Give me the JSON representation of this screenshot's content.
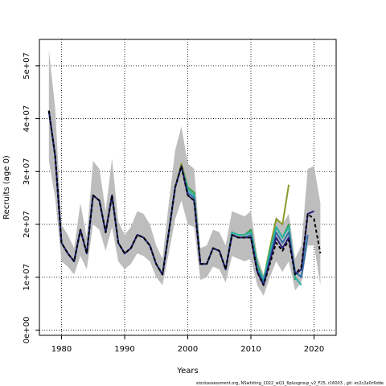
{
  "chart_data": {
    "type": "line",
    "xlabel": "Years",
    "ylabel": "Recruits (age 0)",
    "xlim": [
      1976.5,
      2023.5
    ],
    "ylim": [
      -1000000,
      55000000
    ],
    "x_ticks": [
      1980,
      1990,
      2000,
      2010,
      2020
    ],
    "x_tick_labels": [
      "1980",
      "1990",
      "2000",
      "2010",
      "2020"
    ],
    "y_ticks": [
      0,
      10000000,
      20000000,
      30000000,
      40000000,
      50000000
    ],
    "y_tick_labels": [
      "0e+00",
      "1e+07",
      "2e+07",
      "3e+07",
      "4e+07",
      "5e+07"
    ],
    "grid": true,
    "grid_style": "dotted",
    "confidence_band": {
      "color": "#bdbdbd",
      "x": [
        1978,
        1979,
        1980,
        1981,
        1982,
        1983,
        1984,
        1985,
        1986,
        1987,
        1988,
        1989,
        1990,
        1991,
        1992,
        1993,
        1994,
        1995,
        1996,
        1997,
        1998,
        1999,
        2000,
        2001,
        2002,
        2003,
        2004,
        2005,
        2006,
        2007,
        2008,
        2009,
        2010,
        2011,
        2012,
        2013,
        2014,
        2015,
        2016,
        2017,
        2018,
        2019,
        2020,
        2021
      ],
      "upper": [
        53000000,
        42000000,
        20000000,
        18000000,
        15500000,
        24000000,
        17500000,
        32000000,
        30500000,
        22500000,
        32500000,
        20500000,
        18000000,
        19500000,
        22500000,
        22000000,
        20000000,
        16000000,
        13500000,
        24000000,
        34000000,
        38500000,
        31500000,
        30500000,
        15500000,
        16000000,
        19000000,
        18500000,
        16000000,
        22500000,
        22000000,
        21500000,
        22500000,
        14000000,
        10500000,
        15000000,
        21500000,
        20000000,
        22000000,
        13500000,
        16000000,
        30500000,
        31000000,
        24000000
      ],
      "lower": [
        32000000,
        25000000,
        13000000,
        12000000,
        10500000,
        14000000,
        11500000,
        20000000,
        19000000,
        15000000,
        19500000,
        13000000,
        11500000,
        12500000,
        14500000,
        14000000,
        13000000,
        10000000,
        8500000,
        14500000,
        21000000,
        24500000,
        20000000,
        19500000,
        9500000,
        10000000,
        12000000,
        11500000,
        9000000,
        14000000,
        13500000,
        13000000,
        13500000,
        8500000,
        6500000,
        10000000,
        13000000,
        11000000,
        13000000,
        7500000,
        9000000,
        16000000,
        16000000,
        8500000
      ]
    },
    "series": [
      {
        "color": "#000000",
        "dashed": true,
        "x": [
          1978,
          1979,
          1980,
          1981,
          1982,
          1983,
          1984,
          1985,
          1986,
          1987,
          1988,
          1989,
          1990,
          1991,
          1992,
          1993,
          1994,
          1995,
          1996,
          1997,
          1998,
          1999,
          2000,
          2001,
          2002,
          2003,
          2004,
          2005,
          2006,
          2007,
          2008,
          2009,
          2010,
          2011,
          2012,
          2013,
          2014,
          2015,
          2016,
          2017,
          2018,
          2019,
          2020,
          2021
        ],
        "values": [
          41500000,
          33000000,
          16500000,
          14500000,
          13000000,
          19000000,
          14500000,
          25500000,
          24500000,
          18500000,
          25500000,
          16500000,
          14500000,
          15500000,
          18000000,
          17500000,
          16000000,
          12500000,
          10500000,
          18500000,
          27000000,
          31000000,
          25500000,
          24500000,
          12500000,
          12500000,
          15500000,
          15000000,
          11500000,
          18000000,
          17500000,
          17500000,
          17500000,
          11000000,
          8500000,
          12500000,
          16500000,
          15000000,
          17000000,
          10500000,
          12000000,
          22000000,
          21000000,
          14500000
        ]
      },
      {
        "color": "#2a1f7a",
        "x": [
          1978,
          1979,
          1980,
          1981,
          1982,
          1983,
          1984,
          1985,
          1986,
          1987,
          1988,
          1989,
          1990,
          1991,
          1992,
          1993,
          1994,
          1995,
          1996,
          1997,
          1998,
          1999,
          2000,
          2001,
          2002,
          2003,
          2004,
          2005,
          2006,
          2007,
          2008,
          2009,
          2010,
          2011,
          2012,
          2013,
          2014,
          2015,
          2016,
          2017,
          2018,
          2019,
          2020
        ],
        "values": [
          41500000,
          33000000,
          16500000,
          14500000,
          13000000,
          19000000,
          14500000,
          25500000,
          24500000,
          18500000,
          25500000,
          16500000,
          14500000,
          15500000,
          18000000,
          17500000,
          16000000,
          12500000,
          10500000,
          18500000,
          27000000,
          31000000,
          25500000,
          24500000,
          12500000,
          12500000,
          15500000,
          15000000,
          11500000,
          18000000,
          17500000,
          17500000,
          17500000,
          11000000,
          8500000,
          13000000,
          17500000,
          15500000,
          17500000,
          10500000,
          11500000,
          22000000,
          22500000
        ]
      },
      {
        "color": "#2e6fa7",
        "x": [
          1978,
          1979,
          1980,
          1981,
          1982,
          1983,
          1984,
          1985,
          1986,
          1987,
          1988,
          1989,
          1990,
          1991,
          1992,
          1993,
          1994,
          1995,
          1996,
          1997,
          1998,
          1999,
          2000,
          2001,
          2002,
          2003,
          2004,
          2005,
          2006,
          2007,
          2008,
          2009,
          2010,
          2011,
          2012,
          2013,
          2014,
          2015,
          2016,
          2017,
          2018,
          2019
        ],
        "values": [
          41500000,
          33000000,
          16500000,
          14500000,
          13000000,
          19000000,
          14500000,
          25500000,
          24500000,
          18500000,
          25500000,
          16500000,
          14500000,
          15500000,
          18000000,
          17500000,
          16000000,
          12500000,
          10500000,
          18500000,
          27000000,
          31000000,
          26000000,
          25000000,
          12500000,
          12500000,
          15500000,
          15000000,
          11500000,
          18000000,
          17500000,
          17500000,
          18000000,
          11500000,
          9000000,
          13500000,
          18500000,
          16500000,
          18500000,
          11000000,
          10000000,
          18000000
        ]
      },
      {
        "color": "#2ab3a6",
        "x": [
          1978,
          1979,
          1980,
          1981,
          1982,
          1983,
          1984,
          1985,
          1986,
          1987,
          1988,
          1989,
          1990,
          1991,
          1992,
          1993,
          1994,
          1995,
          1996,
          1997,
          1998,
          1999,
          2000,
          2001,
          2002,
          2003,
          2004,
          2005,
          2006,
          2007,
          2008,
          2009,
          2010,
          2011,
          2012,
          2013,
          2014,
          2015,
          2016,
          2017,
          2018
        ],
        "values": [
          41500000,
          33000000,
          16500000,
          14500000,
          13000000,
          19000000,
          14500000,
          25500000,
          24500000,
          18500000,
          25500000,
          16500000,
          14500000,
          15500000,
          18000000,
          17500000,
          16000000,
          12500000,
          10500000,
          18500000,
          27000000,
          31000000,
          26500000,
          25500000,
          12500000,
          12500000,
          15500000,
          15000000,
          11500000,
          18500000,
          18000000,
          18000000,
          18500000,
          12000000,
          9500000,
          14500000,
          19500000,
          17500000,
          19500000,
          10000000,
          8500000
        ]
      },
      {
        "color": "#35a04c",
        "x": [
          1978,
          1979,
          1980,
          1981,
          1982,
          1983,
          1984,
          1985,
          1986,
          1987,
          1988,
          1989,
          1990,
          1991,
          1992,
          1993,
          1994,
          1995,
          1996,
          1997,
          1998,
          1999,
          2000,
          2001,
          2002,
          2003,
          2004,
          2005,
          2006,
          2007,
          2008,
          2009,
          2010,
          2011,
          2012,
          2013,
          2014,
          2015,
          2016,
          2017
        ],
        "values": [
          41500000,
          33000000,
          16500000,
          14500000,
          13000000,
          19000000,
          14500000,
          25500000,
          24500000,
          18500000,
          25500000,
          16500000,
          14500000,
          15500000,
          18000000,
          17500000,
          16000000,
          12500000,
          10500000,
          18500000,
          27000000,
          31000000,
          27000000,
          26000000,
          12500000,
          12500000,
          15500000,
          15000000,
          11500000,
          18500000,
          18000000,
          18000000,
          19000000,
          12500000,
          9500000,
          15000000,
          19500000,
          17500000,
          20000000,
          9500000
        ]
      },
      {
        "color": "#8a9a2a",
        "x": [
          1978,
          1979,
          1980,
          1981,
          1982,
          1983,
          1984,
          1985,
          1986,
          1987,
          1988,
          1989,
          1990,
          1991,
          1992,
          1993,
          1994,
          1995,
          1996,
          1997,
          1998,
          1999,
          2000,
          2001,
          2002,
          2003,
          2004,
          2005,
          2006,
          2007,
          2008,
          2009,
          2010,
          2011,
          2012,
          2013,
          2014,
          2015,
          2016
        ],
        "values": [
          41500000,
          33000000,
          16500000,
          14500000,
          13000000,
          19000000,
          14500000,
          25500000,
          24500000,
          18500000,
          25500000,
          16500000,
          14500000,
          15500000,
          18000000,
          17500000,
          16000000,
          12500000,
          10500000,
          18500000,
          27000000,
          31500000,
          27000000,
          26000000,
          12500000,
          12500000,
          15500000,
          15000000,
          11500000,
          18500000,
          18000000,
          18000000,
          19000000,
          12500000,
          9500000,
          15500000,
          21000000,
          20000000,
          27500000
        ]
      }
    ]
  },
  "footer": "stockassessment.org, NSwhiting_2022_wQ1_6plusgroup_v2_F25, r16003 , git: ec2c2a0c6dde"
}
